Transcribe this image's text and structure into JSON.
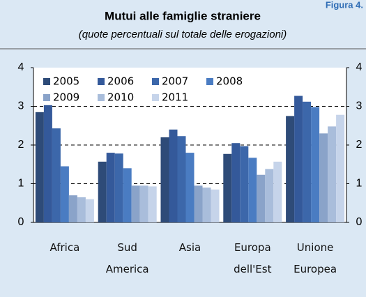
{
  "figure_label": "Figura 4.",
  "chart_data": {
    "type": "bar",
    "title": "Mutui alle famiglie straniere",
    "subtitle": "(quote percentuali sul totale delle erogazioni)",
    "categories": [
      "Africa",
      "Sud America",
      "Asia",
      "Europa dell'Est",
      "Unione Europea"
    ],
    "series": [
      {
        "name": "2005",
        "color": "#2e4b78",
        "values": [
          2.85,
          1.57,
          2.2,
          1.77,
          2.75
        ]
      },
      {
        "name": "2006",
        "color": "#34599a",
        "values": [
          3.03,
          1.8,
          2.4,
          2.05,
          3.27
        ]
      },
      {
        "name": "2007",
        "color": "#3c67aa",
        "values": [
          2.43,
          1.78,
          2.23,
          1.97,
          3.12
        ]
      },
      {
        "name": "2008",
        "color": "#4a7cc2",
        "values": [
          1.45,
          1.4,
          1.8,
          1.67,
          2.98
        ]
      },
      {
        "name": "2009",
        "color": "#8aa3c9",
        "values": [
          0.7,
          0.95,
          0.95,
          1.23,
          2.3
        ]
      },
      {
        "name": "2010",
        "color": "#a9bddb",
        "values": [
          0.65,
          0.95,
          0.9,
          1.38,
          2.48
        ]
      },
      {
        "name": "2011",
        "color": "#c6d4ea",
        "values": [
          0.6,
          0.93,
          0.85,
          1.57,
          2.78
        ]
      }
    ],
    "ylim": [
      0,
      4
    ],
    "yticks": [
      0,
      1,
      2,
      3,
      4
    ],
    "y2lim": [
      0,
      4
    ],
    "y2ticks": [
      0,
      1,
      2,
      3,
      4
    ],
    "grid": true,
    "legend": "top-left"
  }
}
